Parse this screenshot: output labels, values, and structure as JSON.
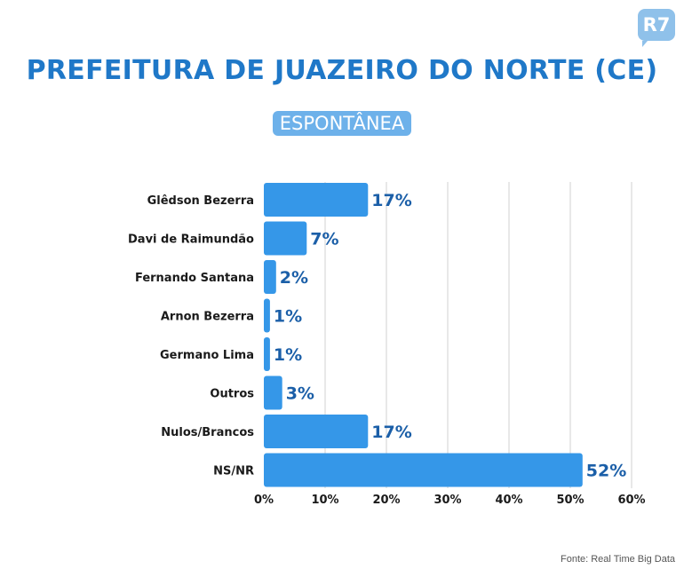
{
  "header": {
    "logo_text": "R7",
    "title": "PREFEITURA DE JUAZEIRO DO NORTE (CE)",
    "subtitle": "ESPONTÂNEA"
  },
  "footer": {
    "source": "Fonte: Real Time Big Data"
  },
  "colors": {
    "bar": "#3597e8",
    "title": "#1f78c8",
    "value_label": "#1b5fa8",
    "grid": "#d0d0d0"
  },
  "chart_data": {
    "type": "bar",
    "orientation": "horizontal",
    "categories": [
      "Glêdson Bezerra",
      "Davi de Raimundão",
      "Fernando Santana",
      "Arnon Bezerra",
      "Germano Lima",
      "Outros",
      "Nulos/Brancos",
      "NS/NR"
    ],
    "values": [
      17,
      7,
      2,
      1,
      1,
      3,
      17,
      52
    ],
    "value_labels": [
      "17%",
      "7%",
      "2%",
      "1%",
      "1%",
      "3%",
      "17%",
      "52%"
    ],
    "xlim": [
      0,
      60
    ],
    "xticks": [
      0,
      10,
      20,
      30,
      40,
      50,
      60
    ],
    "xtick_labels": [
      "0%",
      "10%",
      "20%",
      "30%",
      "40%",
      "50%",
      "60%"
    ],
    "grid": true,
    "legend": "none"
  }
}
